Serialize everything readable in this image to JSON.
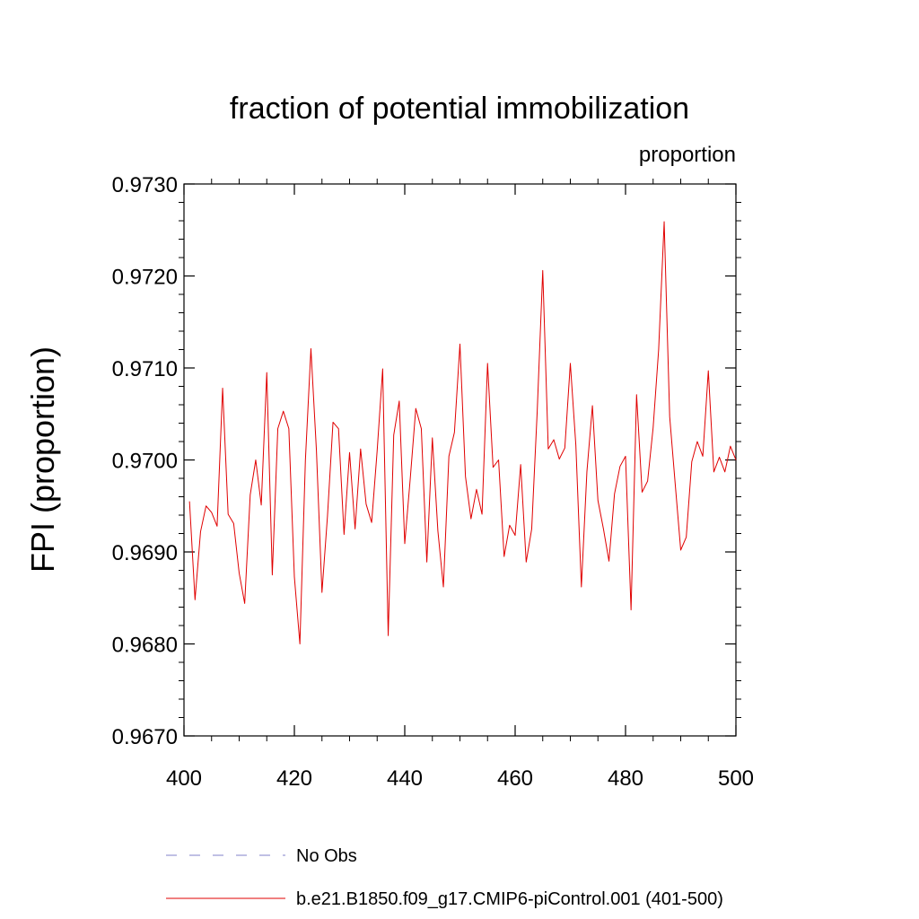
{
  "chart_data": {
    "type": "line",
    "title": "fraction of potential immobilization",
    "units_label": "proportion",
    "xlabel": "",
    "ylabel": "FPI  (proportion)",
    "xlim": [
      400,
      500
    ],
    "ylim": [
      0.967,
      0.973
    ],
    "x_ticks": [
      400,
      420,
      440,
      460,
      480,
      500
    ],
    "x_tick_labels": [
      "400",
      "420",
      "440",
      "460",
      "480",
      "500"
    ],
    "y_ticks": [
      0.967,
      0.968,
      0.969,
      0.97,
      0.971,
      0.972,
      0.973
    ],
    "y_tick_labels": [
      "0.9670",
      "0.9680",
      "0.9690",
      "0.9700",
      "0.9710",
      "0.9720",
      "0.9730"
    ],
    "grid": false,
    "legend_position": "bottom-left",
    "series": [
      {
        "name": "No Obs",
        "color": "#8080c8",
        "style": "dashed",
        "x": [],
        "values": []
      },
      {
        "name": "b.e21.B1850.f09_g17.CMIP6-piControl.001 (401-500)",
        "color": "#e00000",
        "style": "solid",
        "x": [
          401,
          402,
          403,
          404,
          405,
          406,
          407,
          408,
          409,
          410,
          411,
          412,
          413,
          414,
          415,
          416,
          417,
          418,
          419,
          420,
          421,
          422,
          423,
          424,
          425,
          426,
          427,
          428,
          429,
          430,
          431,
          432,
          433,
          434,
          435,
          436,
          437,
          438,
          439,
          440,
          441,
          442,
          443,
          444,
          445,
          446,
          447,
          448,
          449,
          450,
          451,
          452,
          453,
          454,
          455,
          456,
          457,
          458,
          459,
          460,
          461,
          462,
          463,
          464,
          465,
          466,
          467,
          468,
          469,
          470,
          471,
          472,
          473,
          474,
          475,
          476,
          477,
          478,
          479,
          480,
          481,
          482,
          483,
          484,
          485,
          486,
          487,
          488,
          489,
          490,
          491,
          492,
          493,
          494,
          495,
          496,
          497,
          498,
          499,
          500
        ],
        "values": [
          0.96955,
          0.96848,
          0.96922,
          0.9695,
          0.96943,
          0.96928,
          0.97078,
          0.96941,
          0.96931,
          0.96877,
          0.96844,
          0.96962,
          0.97,
          0.96951,
          0.97095,
          0.96875,
          0.97034,
          0.97053,
          0.97034,
          0.96873,
          0.968,
          0.97,
          0.97121,
          0.9701,
          0.96856,
          0.96939,
          0.97041,
          0.97034,
          0.96919,
          0.97008,
          0.96925,
          0.97012,
          0.96952,
          0.96932,
          0.9701,
          0.97099,
          0.96809,
          0.97027,
          0.97064,
          0.96909,
          0.9698,
          0.97056,
          0.97034,
          0.96889,
          0.97024,
          0.96923,
          0.96862,
          0.97004,
          0.9703,
          0.97126,
          0.96982,
          0.96936,
          0.96968,
          0.96941,
          0.97105,
          0.96992,
          0.97,
          0.96895,
          0.96929,
          0.96918,
          0.96995,
          0.96889,
          0.96925,
          0.97053,
          0.97206,
          0.97012,
          0.97022,
          0.97001,
          0.97013,
          0.97105,
          0.97016,
          0.96862,
          0.96987,
          0.97059,
          0.96956,
          0.96925,
          0.9689,
          0.96963,
          0.96993,
          0.97004,
          0.96837,
          0.97071,
          0.96965,
          0.96977,
          0.97035,
          0.9712,
          0.97259,
          0.97047,
          0.96974,
          0.96902,
          0.96916,
          0.96998,
          0.9702,
          0.97004,
          0.97097,
          0.96987,
          0.97003,
          0.96987,
          0.97015,
          0.97
        ]
      }
    ]
  }
}
